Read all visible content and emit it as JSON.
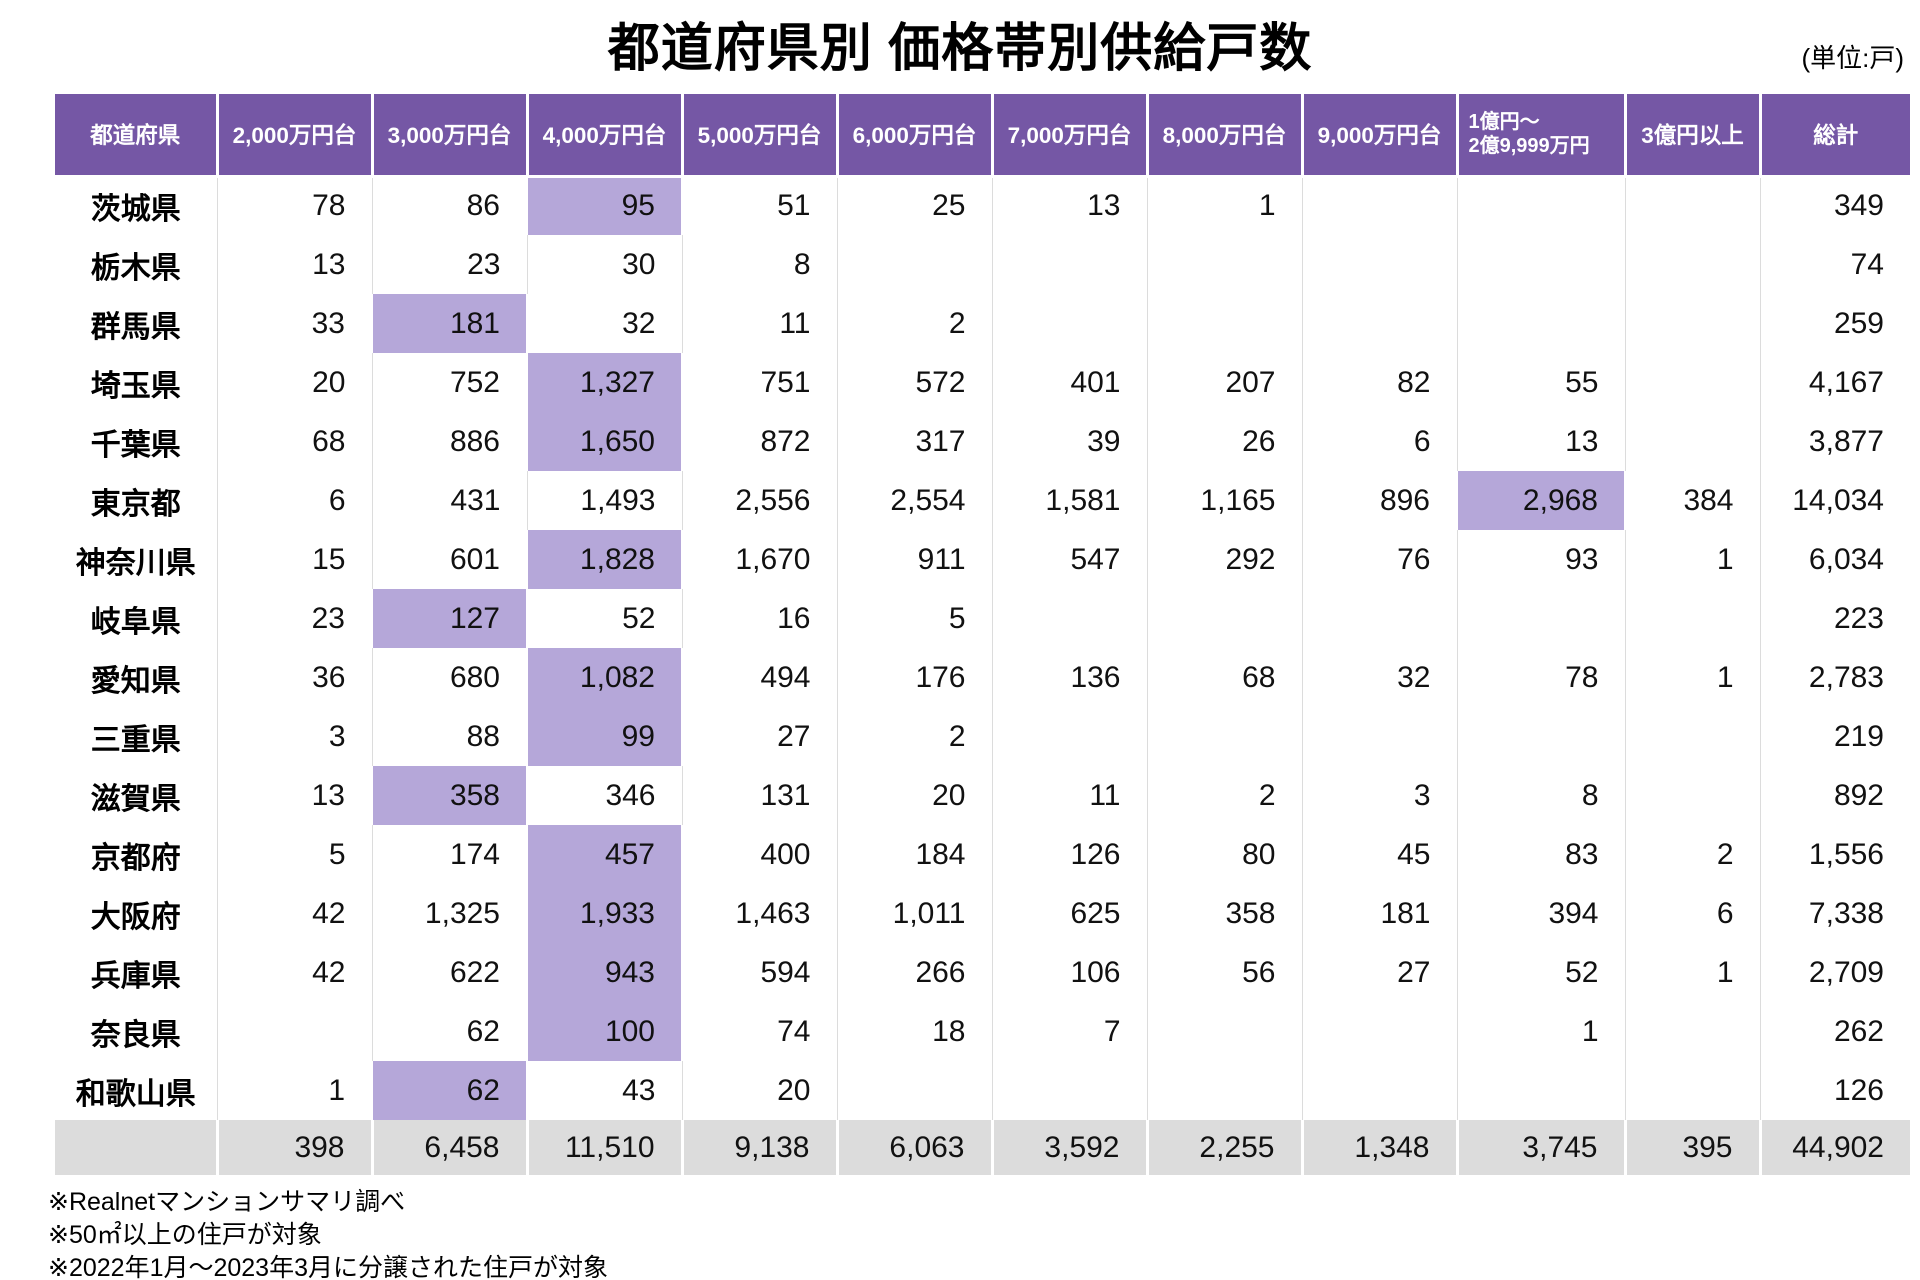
{
  "colors": {
    "header_bg": "#7557A5",
    "highlight_bg": "#B5A7D9",
    "total_row_bg": "#DCDCDC",
    "grid_line": "#DCDCDC"
  },
  "chart_data": {
    "type": "table",
    "title": "都道府県別 価格帯別供給戸数",
    "unit_note": "(単位:戸)",
    "columns": [
      "都道府県",
      "2,000万円台",
      "3,000万円台",
      "4,000万円台",
      "5,000万円台",
      "6,000万円台",
      "7,000万円台",
      "8,000万円台",
      "9,000万円台",
      "1億円～\n2億9,999万円",
      "3億円以上",
      "総計"
    ],
    "highlight_note": "purple cells = peak price band per prefecture",
    "rows": [
      {
        "pref": "茨城県",
        "values": [
          "78",
          "86",
          "95",
          "51",
          "25",
          "13",
          "1",
          "",
          "",
          "",
          "349"
        ],
        "highlight": 2
      },
      {
        "pref": "栃木県",
        "values": [
          "13",
          "23",
          "30",
          "8",
          "",
          "",
          "",
          "",
          "",
          "",
          "74"
        ],
        "highlight": -1
      },
      {
        "pref": "群馬県",
        "values": [
          "33",
          "181",
          "32",
          "11",
          "2",
          "",
          "",
          "",
          "",
          "",
          "259"
        ],
        "highlight": 1
      },
      {
        "pref": "埼玉県",
        "values": [
          "20",
          "752",
          "1,327",
          "751",
          "572",
          "401",
          "207",
          "82",
          "55",
          "",
          "4,167"
        ],
        "highlight": 2
      },
      {
        "pref": "千葉県",
        "values": [
          "68",
          "886",
          "1,650",
          "872",
          "317",
          "39",
          "26",
          "6",
          "13",
          "",
          "3,877"
        ],
        "highlight": 2
      },
      {
        "pref": "東京都",
        "values": [
          "6",
          "431",
          "1,493",
          "2,556",
          "2,554",
          "1,581",
          "1,165",
          "896",
          "2,968",
          "384",
          "14,034"
        ],
        "highlight": 8
      },
      {
        "pref": "神奈川県",
        "values": [
          "15",
          "601",
          "1,828",
          "1,670",
          "911",
          "547",
          "292",
          "76",
          "93",
          "1",
          "6,034"
        ],
        "highlight": 2
      },
      {
        "pref": "岐阜県",
        "values": [
          "23",
          "127",
          "52",
          "16",
          "5",
          "",
          "",
          "",
          "",
          "",
          "223"
        ],
        "highlight": 1
      },
      {
        "pref": "愛知県",
        "values": [
          "36",
          "680",
          "1,082",
          "494",
          "176",
          "136",
          "68",
          "32",
          "78",
          "1",
          "2,783"
        ],
        "highlight": 2
      },
      {
        "pref": "三重県",
        "values": [
          "3",
          "88",
          "99",
          "27",
          "2",
          "",
          "",
          "",
          "",
          "",
          "219"
        ],
        "highlight": 2
      },
      {
        "pref": "滋賀県",
        "values": [
          "13",
          "358",
          "346",
          "131",
          "20",
          "11",
          "2",
          "3",
          "8",
          "",
          "892"
        ],
        "highlight": 1
      },
      {
        "pref": "京都府",
        "values": [
          "5",
          "174",
          "457",
          "400",
          "184",
          "126",
          "80",
          "45",
          "83",
          "2",
          "1,556"
        ],
        "highlight": 2
      },
      {
        "pref": "大阪府",
        "values": [
          "42",
          "1,325",
          "1,933",
          "1,463",
          "1,011",
          "625",
          "358",
          "181",
          "394",
          "6",
          "7,338"
        ],
        "highlight": 2
      },
      {
        "pref": "兵庫県",
        "values": [
          "42",
          "622",
          "943",
          "594",
          "266",
          "106",
          "56",
          "27",
          "52",
          "1",
          "2,709"
        ],
        "highlight": 2
      },
      {
        "pref": "奈良県",
        "values": [
          "",
          "62",
          "100",
          "74",
          "18",
          "7",
          "",
          "",
          "1",
          "",
          "262"
        ],
        "highlight": 2
      },
      {
        "pref": "和歌山県",
        "values": [
          "1",
          "62",
          "43",
          "20",
          "",
          "",
          "",
          "",
          "",
          "",
          "126"
        ],
        "highlight": 1
      }
    ],
    "total_row": {
      "label": "",
      "values": [
        "398",
        "6,458",
        "11,510",
        "9,138",
        "6,063",
        "3,592",
        "2,255",
        "1,348",
        "3,745",
        "395",
        "44,902"
      ]
    },
    "footnotes": [
      "※Realnetマンションサマリ調べ",
      "※50㎡以上の住戸が対象",
      "※2022年1月～2023年3月に分譲された住戸が対象"
    ]
  }
}
